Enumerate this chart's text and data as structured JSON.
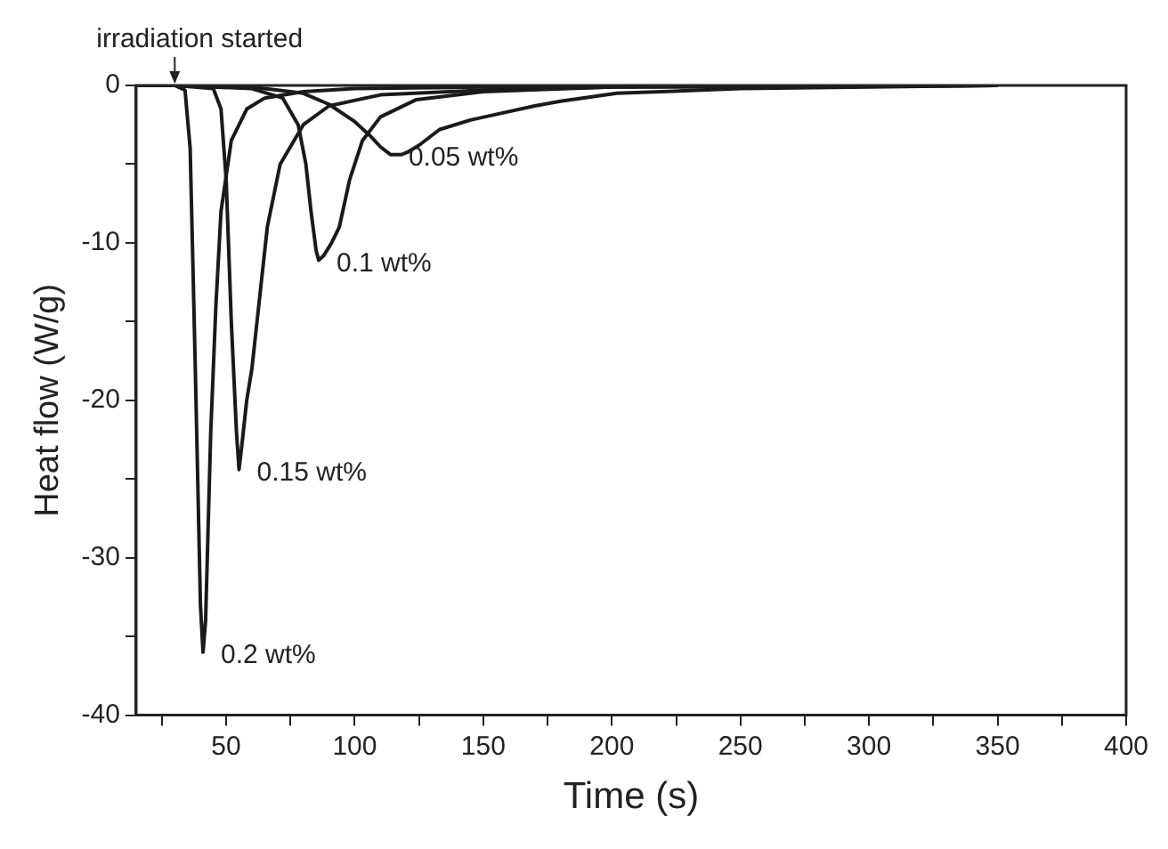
{
  "chart_data": {
    "type": "line",
    "xlabel": "Time (s)",
    "ylabel": "Heat flow (W/g)",
    "xlim": [
      15,
      400
    ],
    "ylim": [
      -40,
      0
    ],
    "xticks": [
      {
        "value": 25,
        "label": null
      },
      50,
      {
        "value": 75,
        "label": null
      },
      100,
      {
        "value": 125,
        "label": null
      },
      150,
      {
        "value": 175,
        "label": null
      },
      200,
      {
        "value": 225,
        "label": null
      },
      250,
      {
        "value": 275,
        "label": null
      },
      300,
      {
        "value": 325,
        "label": null
      },
      350,
      {
        "value": 375,
        "label": null
      },
      400
    ],
    "yticks": [
      -40,
      {
        "value": -35,
        "label": null
      },
      -30,
      {
        "value": -25,
        "label": null
      },
      -20,
      {
        "value": -15,
        "label": null
      },
      -10,
      {
        "value": -5,
        "label": null
      },
      0
    ],
    "grid": false,
    "legend": false,
    "marker": "none",
    "line_style": "solid",
    "annotations": [
      {
        "text": "irradiation started",
        "x": 30,
        "y": 0
      }
    ],
    "series": [
      {
        "name": "0.2 wt%",
        "color": "#1a1a1a",
        "x": [
          15,
          30,
          34,
          36,
          38,
          40,
          41,
          42,
          44,
          46,
          48,
          52,
          58,
          65,
          80,
          100,
          150,
          200,
          350
        ],
        "values": [
          0,
          0,
          -0.3,
          -4,
          -18,
          -33,
          -36,
          -34,
          -22,
          -14,
          -8,
          -3.5,
          -1.5,
          -0.8,
          -0.4,
          -0.2,
          -0.1,
          -0.05,
          0
        ]
      },
      {
        "name": "0.15 wt%",
        "color": "#1a1a1a",
        "x": [
          15,
          30,
          45,
          48,
          50,
          52,
          54,
          55,
          56,
          58,
          60,
          62,
          66,
          71,
          80,
          90,
          110,
          150,
          200,
          350
        ],
        "values": [
          0,
          0,
          -0.2,
          -1.5,
          -6,
          -15,
          -22,
          -24.4,
          -23,
          -20,
          -18,
          -15,
          -9,
          -5,
          -2.5,
          -1.3,
          -0.6,
          -0.3,
          -0.1,
          0
        ]
      },
      {
        "name": "0.1 wt%",
        "color": "#1a1a1a",
        "x": [
          15,
          30,
          60,
          72,
          78,
          81,
          83,
          85,
          86,
          88,
          91,
          94,
          98,
          103,
          110,
          124,
          150,
          200,
          350
        ],
        "values": [
          0,
          0,
          -0.2,
          -0.8,
          -2.5,
          -5,
          -8,
          -10.5,
          -11.1,
          -10.8,
          -10,
          -9,
          -6,
          -3.5,
          -2,
          -0.9,
          -0.4,
          -0.1,
          0
        ]
      },
      {
        "name": "0.05 wt%",
        "color": "#1a1a1a",
        "x": [
          15,
          30,
          60,
          80,
          90,
          100,
          106,
          110,
          114,
          118,
          121,
          125,
          133,
          145,
          156,
          170,
          180,
          202,
          250,
          300,
          350
        ],
        "values": [
          0,
          0,
          -0.1,
          -0.5,
          -1.2,
          -2.3,
          -3.2,
          -3.9,
          -4.4,
          -4.4,
          -4.2,
          -3.8,
          -2.8,
          -2.2,
          -1.8,
          -1.3,
          -1.0,
          -0.5,
          -0.2,
          -0.1,
          0
        ]
      }
    ]
  }
}
